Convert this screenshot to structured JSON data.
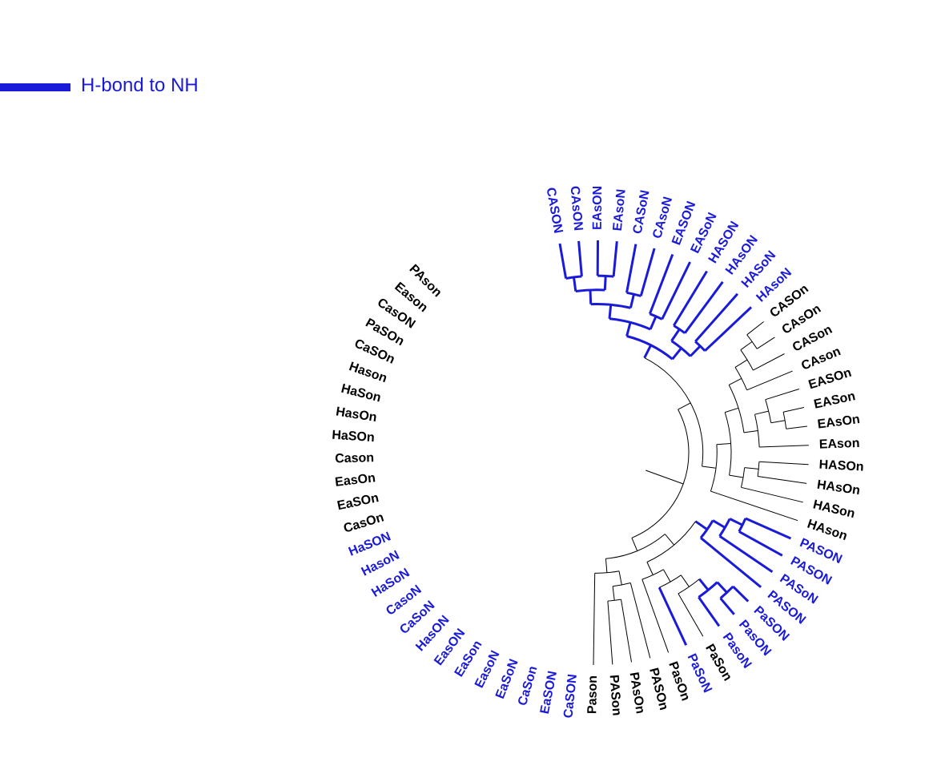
{
  "colors": {
    "highlight": "#1a1ad9",
    "default": "#000000"
  },
  "legend": {
    "label": "H-bond to NH",
    "color": "#1a1ad9"
  },
  "tree": {
    "leaves": [
      {
        "label": "CASON",
        "hl": true
      },
      {
        "label": "CAsON",
        "hl": true
      },
      {
        "label": "EAsON",
        "hl": true
      },
      {
        "label": "EAsoN",
        "hl": true
      },
      {
        "label": "CASoN",
        "hl": true
      },
      {
        "label": "CAsoN",
        "hl": true
      },
      {
        "label": "EASON",
        "hl": true
      },
      {
        "label": "EASoN",
        "hl": true
      },
      {
        "label": "HASON",
        "hl": true
      },
      {
        "label": "HAsON",
        "hl": true
      },
      {
        "label": "HASoN",
        "hl": true
      },
      {
        "label": "HAsoN",
        "hl": true
      },
      {
        "label": "CASOn",
        "hl": false
      },
      {
        "label": "CAsOn",
        "hl": false
      },
      {
        "label": "CASon",
        "hl": false
      },
      {
        "label": "CAson",
        "hl": false
      },
      {
        "label": "EASOn",
        "hl": false
      },
      {
        "label": "EASon",
        "hl": false
      },
      {
        "label": "EAsOn",
        "hl": false
      },
      {
        "label": "EAson",
        "hl": false
      },
      {
        "label": "HASOn",
        "hl": false
      },
      {
        "label": "HAsOn",
        "hl": false
      },
      {
        "label": "HASon",
        "hl": false
      },
      {
        "label": "HAson",
        "hl": false
      },
      {
        "label": "PASON",
        "hl": true
      },
      {
        "label": "PASON",
        "hl": true
      },
      {
        "label": "PASoN",
        "hl": true
      },
      {
        "label": "PASON",
        "hl": true
      },
      {
        "label": "PaSON",
        "hl": true
      },
      {
        "label": "PasON",
        "hl": true
      },
      {
        "label": "PasoN",
        "hl": true
      },
      {
        "label": "PaSon",
        "hl": false
      },
      {
        "label": "PaSoN",
        "hl": true
      },
      {
        "label": "PasOn",
        "hl": false
      },
      {
        "label": "PASOn",
        "hl": false
      },
      {
        "label": "PAsOn",
        "hl": false
      },
      {
        "label": "PASon",
        "hl": false
      },
      {
        "label": "Pason",
        "hl": false
      },
      {
        "label": "CaSON",
        "hl": true
      },
      {
        "label": "EaSON",
        "hl": true
      },
      {
        "label": "CaSon",
        "hl": true
      },
      {
        "label": "EaSoN",
        "hl": true
      },
      {
        "label": "EasoN",
        "hl": true
      },
      {
        "label": "EaSon",
        "hl": true
      },
      {
        "label": "EasON",
        "hl": true
      },
      {
        "label": "HasON",
        "hl": true
      },
      {
        "label": "CaSoN",
        "hl": true
      },
      {
        "label": "CasoN",
        "hl": true
      },
      {
        "label": "HaSoN",
        "hl": true
      },
      {
        "label": "HasoN",
        "hl": true
      },
      {
        "label": "HaSON",
        "hl": true
      },
      {
        "label": "CasOn",
        "hl": false
      },
      {
        "label": "EaSOn",
        "hl": false
      },
      {
        "label": "EasOn",
        "hl": false
      },
      {
        "label": "Cason",
        "hl": false
      },
      {
        "label": "HaSOn",
        "hl": false
      },
      {
        "label": "HasOn",
        "hl": false
      },
      {
        "label": "HaSon",
        "hl": false
      },
      {
        "label": "Hason",
        "hl": false
      },
      {
        "label": "CaSOn",
        "hl": false
      },
      {
        "label": "PaSOn",
        "hl": false
      },
      {
        "label": "CasON",
        "hl": false
      },
      {
        "label": "Eason",
        "hl": false
      },
      {
        "label": "PAson",
        "hl": false
      }
    ],
    "clades": [
      {
        "m": [
          0,
          1
        ],
        "hl": true
      },
      {
        "m": [
          2,
          3
        ],
        "hl": true
      },
      {
        "m": [
          0,
          1,
          2,
          3
        ],
        "hl": true
      },
      {
        "m": [
          4,
          5
        ],
        "hl": true
      },
      {
        "m": [
          0,
          1,
          2,
          3,
          4,
          5
        ],
        "hl": true
      },
      {
        "m": [
          6,
          7
        ],
        "hl": true
      },
      {
        "m": [
          0,
          1,
          2,
          3,
          4,
          5,
          6,
          7
        ],
        "hl": true
      },
      {
        "m": [
          8,
          9
        ],
        "hl": true
      },
      {
        "m": [
          10,
          11
        ],
        "hl": true
      },
      {
        "m": [
          8,
          9,
          10,
          11
        ],
        "hl": true
      },
      {
        "m": [
          0,
          1,
          2,
          3,
          4,
          5,
          6,
          7,
          8,
          9,
          10,
          11
        ],
        "hl": true
      },
      {
        "m": [
          12,
          13
        ],
        "hl": false
      },
      {
        "m": [
          12,
          13,
          14
        ],
        "hl": false
      },
      {
        "m": [
          12,
          13,
          14,
          15
        ],
        "hl": false
      },
      {
        "m": [
          17,
          18
        ],
        "hl": false
      },
      {
        "m": [
          16,
          17,
          18
        ],
        "hl": false
      },
      {
        "m": [
          16,
          17,
          18,
          19
        ],
        "hl": false
      },
      {
        "m": [
          12,
          13,
          14,
          15,
          16,
          17,
          18,
          19
        ],
        "hl": false
      },
      {
        "m": [
          20,
          21
        ],
        "hl": false
      },
      {
        "m": [
          20,
          21,
          22
        ],
        "hl": false
      },
      {
        "m": [
          12,
          13,
          14,
          15,
          16,
          17,
          18,
          19,
          20,
          21,
          22
        ],
        "hl": false
      },
      {
        "m": [
          12,
          13,
          14,
          15,
          16,
          17,
          18,
          19,
          20,
          21,
          22,
          23
        ],
        "hl": false
      },
      {
        "m": [
          0,
          1,
          2,
          3,
          4,
          5,
          6,
          7,
          8,
          9,
          10,
          11,
          12,
          13,
          14,
          15,
          16,
          17,
          18,
          19,
          20,
          21,
          22,
          23
        ],
        "hl": false
      },
      {
        "m": [
          24,
          25
        ],
        "hl": true
      },
      {
        "m": [
          24,
          25,
          26
        ],
        "hl": true
      },
      {
        "m": [
          24,
          25,
          26,
          27
        ],
        "hl": true
      },
      {
        "m": [
          28,
          29
        ],
        "hl": true
      },
      {
        "m": [
          28,
          29,
          30
        ],
        "hl": true
      },
      {
        "m": [
          28,
          29,
          30,
          31
        ],
        "hl": false
      },
      {
        "m": [
          28,
          29,
          30,
          31,
          32
        ],
        "hl": false
      },
      {
        "m": [
          28,
          29,
          30,
          31,
          32,
          33
        ],
        "hl": false
      },
      {
        "m": [
          24,
          25,
          26,
          27,
          28,
          29,
          30,
          31,
          32,
          33
        ],
        "hl": false
      },
      {
        "m": [
          35,
          36
        ],
        "hl": false
      },
      {
        "m": [
          34,
          35,
          36
        ],
        "hl": false
      },
      {
        "m": [
          34,
          35,
          36,
          37
        ],
        "hl": false
      },
      {
        "m": [
          24,
          25,
          26,
          27,
          28,
          29,
          30,
          31,
          32,
          33,
          34,
          35,
          36,
          37
        ],
        "hl": false
      },
      {
        "m": [
          0,
          1,
          2,
          3,
          4,
          5,
          6,
          7,
          8,
          9,
          10,
          11,
          12,
          13,
          14,
          15,
          16,
          17,
          18,
          19,
          20,
          21,
          22,
          23,
          24,
          25,
          26,
          27,
          28,
          29,
          30,
          31,
          32,
          33,
          34,
          35,
          36,
          37
        ],
        "hl": false
      },
      {
        "m": [
          38,
          39
        ],
        "hl": true
      },
      {
        "m": [
          38,
          39,
          40
        ],
        "hl": true
      },
      {
        "m": [
          41,
          42
        ],
        "hl": true
      },
      {
        "m": [
          43,
          44
        ],
        "hl": true
      },
      {
        "m": [
          41,
          42,
          43,
          44
        ],
        "hl": true
      },
      {
        "m": [
          38,
          39,
          40,
          41,
          42,
          43,
          44
        ],
        "hl": true
      },
      {
        "m": [
          38,
          39,
          40,
          41,
          42,
          43,
          44,
          45
        ],
        "hl": true
      },
      {
        "m": [
          46,
          47
        ],
        "hl": true
      },
      {
        "m": [
          38,
          39,
          40,
          41,
          42,
          43,
          44,
          45,
          46,
          47
        ],
        "hl": true
      },
      {
        "m": [
          48,
          49
        ],
        "hl": true
      },
      {
        "m": [
          38,
          39,
          40,
          41,
          42,
          43,
          44,
          45,
          46,
          47,
          48,
          49
        ],
        "hl": true
      },
      {
        "m": [
          38,
          39,
          40,
          41,
          42,
          43,
          44,
          45,
          46,
          47,
          48,
          49,
          50
        ],
        "hl": true
      },
      {
        "m": [
          51,
          52
        ],
        "hl": false
      },
      {
        "m": [
          51,
          52,
          53
        ],
        "hl": false
      },
      {
        "m": [
          51,
          52,
          53,
          54
        ],
        "hl": false
      },
      {
        "m": [
          55,
          56
        ],
        "hl": false
      },
      {
        "m": [
          57,
          58
        ],
        "hl": false
      },
      {
        "m": [
          55,
          56,
          57,
          58
        ],
        "hl": false
      },
      {
        "m": [
          51,
          52,
          53,
          54,
          55,
          56,
          57,
          58
        ],
        "hl": false
      },
      {
        "m": [
          38,
          39,
          40,
          41,
          42,
          43,
          44,
          45,
          46,
          47,
          48,
          49,
          50,
          51,
          52,
          53,
          54,
          55,
          56,
          57,
          58
        ],
        "hl": false
      },
      {
        "m": [
          59,
          60
        ],
        "hl": false
      },
      {
        "m": [
          38,
          39,
          40,
          41,
          42,
          43,
          44,
          45,
          46,
          47,
          48,
          49,
          50,
          51,
          52,
          53,
          54,
          55,
          56,
          57,
          58,
          59,
          60
        ],
        "hl": false
      },
      {
        "m": [
          38,
          39,
          40,
          41,
          42,
          43,
          44,
          45,
          46,
          47,
          48,
          49,
          50,
          51,
          52,
          53,
          54,
          55,
          56,
          57,
          58,
          59,
          60,
          61
        ],
        "hl": false
      },
      {
        "m": [
          38,
          39,
          40,
          41,
          42,
          43,
          44,
          45,
          46,
          47,
          48,
          49,
          50,
          51,
          52,
          53,
          54,
          55,
          56,
          57,
          58,
          59,
          60,
          61,
          62
        ],
        "hl": false
      },
      {
        "m": [
          38,
          39,
          40,
          41,
          42,
          43,
          44,
          45,
          46,
          47,
          48,
          49,
          50,
          51,
          52,
          53,
          54,
          55,
          56,
          57,
          58,
          59,
          60,
          61,
          62,
          63
        ],
        "hl": false
      }
    ]
  }
}
